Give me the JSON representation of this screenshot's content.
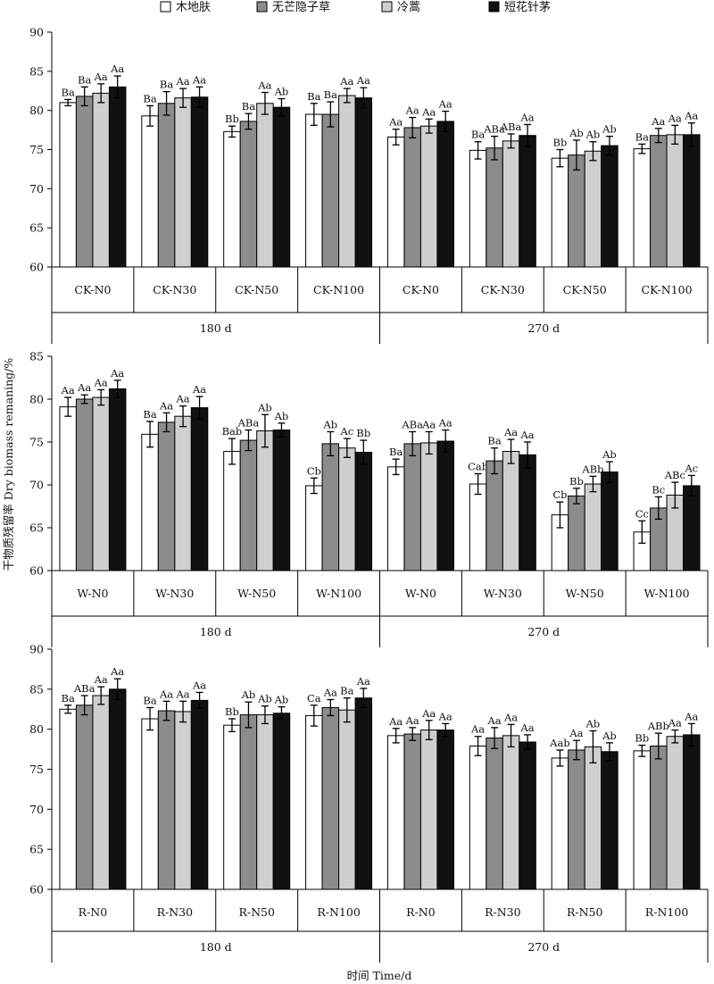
{
  "legend": [
    {
      "name": "木地肤",
      "color": "#ffffff"
    },
    {
      "name": "无芒隐子草",
      "color": "#8c8c8c"
    },
    {
      "name": "冷蒿",
      "color": "#cfcfcf"
    },
    {
      "name": "短花针茅",
      "color": "#111111"
    }
  ],
  "ylabel": "干物质残留率 Dry biomass remaning/%",
  "xlabel": "时间  Time/d",
  "chart_data": [
    {
      "type": "bar",
      "panel": "CK",
      "ylim": [
        60,
        90
      ],
      "yticks": [
        60,
        65,
        70,
        75,
        80,
        85,
        90
      ],
      "categories": [
        "CK-N0",
        "CK-N30",
        "CK-N50",
        "CK-N100",
        "CK-N0",
        "CK-N30",
        "CK-N50",
        "CK-N100"
      ],
      "groups": [
        {
          "label": "180 d",
          "span": [
            0,
            3
          ]
        },
        {
          "label": "270 d",
          "span": [
            4,
            7
          ]
        }
      ],
      "series": [
        {
          "name": "木地肤",
          "values": [
            81.0,
            79.3,
            77.3,
            79.5,
            76.6,
            74.9,
            73.9,
            75.1
          ],
          "errors": [
            0.4,
            1.3,
            0.7,
            1.4,
            1.0,
            1.1,
            1.1,
            0.6
          ],
          "labels": [
            "Ba",
            "Ba",
            "Bb",
            "Ba",
            "Aa",
            "Ba",
            "Bb",
            "Ba"
          ]
        },
        {
          "name": "无芒隐子草",
          "values": [
            81.8,
            80.9,
            78.6,
            79.5,
            77.8,
            75.2,
            74.3,
            76.8
          ],
          "errors": [
            1.2,
            1.5,
            1.0,
            1.6,
            1.3,
            1.5,
            1.9,
            0.9
          ],
          "labels": [
            "Ba",
            "Ba",
            "Ba",
            "Ba",
            "Aa",
            "ABa",
            "Ab",
            "Aa"
          ]
        },
        {
          "name": "冷蒿",
          "values": [
            82.2,
            81.6,
            80.9,
            81.9,
            78.0,
            76.1,
            74.8,
            76.9
          ],
          "errors": [
            1.2,
            1.2,
            1.4,
            0.9,
            0.9,
            0.9,
            1.2,
            1.2
          ],
          "labels": [
            "Aa",
            "Aa",
            "Aa",
            "Aa",
            "Aa",
            "ABa",
            "Ab",
            "Aa"
          ]
        },
        {
          "name": "短花针茅",
          "values": [
            83.0,
            81.7,
            80.4,
            81.6,
            78.6,
            76.8,
            75.5,
            76.9
          ],
          "errors": [
            1.4,
            1.3,
            1.1,
            1.3,
            1.3,
            1.4,
            1.2,
            1.5
          ],
          "labels": [
            "Aa",
            "Aa",
            "Ab",
            "Aa",
            "Aa",
            "Aa",
            "Ab",
            "Aa"
          ]
        }
      ]
    },
    {
      "type": "bar",
      "panel": "W",
      "ylim": [
        60,
        85
      ],
      "yticks": [
        60,
        65,
        70,
        75,
        80,
        85
      ],
      "categories": [
        "W-N0",
        "W-N30",
        "W-N50",
        "W-N100",
        "W-N0",
        "W-N30",
        "W-N50",
        "W-N100"
      ],
      "groups": [
        {
          "label": "180 d",
          "span": [
            0,
            3
          ]
        },
        {
          "label": "270 d",
          "span": [
            4,
            7
          ]
        }
      ],
      "series": [
        {
          "name": "木地肤",
          "values": [
            79.1,
            75.9,
            73.9,
            69.9,
            72.1,
            70.1,
            66.5,
            64.5
          ],
          "errors": [
            1.1,
            1.5,
            1.5,
            0.9,
            0.9,
            1.2,
            1.5,
            1.3
          ],
          "labels": [
            "Aa",
            "Ba",
            "Bab",
            "Cb",
            "Ba",
            "Cab",
            "Cb",
            "Cc"
          ]
        },
        {
          "name": "无芒隐子草",
          "values": [
            80.0,
            77.3,
            75.2,
            74.8,
            74.8,
            72.8,
            68.7,
            67.3
          ],
          "errors": [
            0.5,
            1.1,
            1.2,
            1.4,
            1.4,
            1.5,
            0.9,
            1.3
          ],
          "labels": [
            "Aa",
            "Aa",
            "ABa",
            "Ab",
            "ABa",
            "Ba",
            "Bb",
            "Bc"
          ]
        },
        {
          "name": "冷蒿",
          "values": [
            80.2,
            78.0,
            76.3,
            74.3,
            74.9,
            73.9,
            70.1,
            68.8
          ],
          "errors": [
            0.9,
            1.2,
            1.9,
            1.1,
            1.3,
            1.4,
            0.9,
            1.5
          ],
          "labels": [
            "Aa",
            "Aa",
            "Ab",
            "Ac",
            "Aa",
            "Aa",
            "ABb",
            "ABc"
          ]
        },
        {
          "name": "短花针茅",
          "values": [
            81.2,
            79.0,
            76.4,
            73.8,
            75.1,
            73.5,
            71.5,
            69.9
          ],
          "errors": [
            1.0,
            1.3,
            0.8,
            1.4,
            1.3,
            1.5,
            1.2,
            1.2
          ],
          "labels": [
            "Aa",
            "Aa",
            "Ab",
            "Bb",
            "Aa",
            "Aa",
            "Ab",
            "Ac"
          ]
        }
      ]
    },
    {
      "type": "bar",
      "panel": "R",
      "ylim": [
        60,
        90
      ],
      "yticks": [
        60,
        65,
        70,
        75,
        80,
        85,
        90
      ],
      "categories": [
        "R-N0",
        "R-N30",
        "R-N50",
        "R-N100",
        "R-N0",
        "R-N30",
        "R-N50",
        "R-N100"
      ],
      "groups": [
        {
          "label": "180 d",
          "span": [
            0,
            3
          ]
        },
        {
          "label": "270 d",
          "span": [
            4,
            7
          ]
        }
      ],
      "series": [
        {
          "name": "木地肤",
          "values": [
            82.5,
            81.3,
            80.5,
            81.7,
            79.2,
            77.9,
            76.4,
            77.3
          ],
          "errors": [
            0.5,
            1.4,
            0.8,
            1.3,
            0.9,
            1.2,
            1.0,
            0.7
          ],
          "labels": [
            "Ba",
            "Ba",
            "Bb",
            "Ca",
            "Aa",
            "Aa",
            "Aab",
            "Bb"
          ]
        },
        {
          "name": "无芒隐子草",
          "values": [
            83.0,
            82.3,
            81.8,
            82.7,
            79.4,
            78.9,
            77.4,
            77.9
          ],
          "errors": [
            1.2,
            1.2,
            1.6,
            1.0,
            0.8,
            1.3,
            1.2,
            1.6
          ],
          "labels": [
            "ABa",
            "Aa",
            "Ab",
            "Aa",
            "Aa",
            "Aa",
            "Aa",
            "ABb"
          ]
        },
        {
          "name": "冷蒿",
          "values": [
            84.2,
            82.2,
            81.8,
            82.4,
            79.9,
            79.2,
            77.8,
            79.1
          ],
          "errors": [
            1.1,
            1.3,
            1.1,
            1.5,
            1.2,
            1.4,
            2.0,
            0.8
          ],
          "labels": [
            "Aa",
            "Aa",
            "Ab",
            "Ba",
            "Aa",
            "Aa",
            "Ab",
            "Aa"
          ]
        },
        {
          "name": "短花针茅",
          "values": [
            85.0,
            83.6,
            82.0,
            83.9,
            79.9,
            78.4,
            77.2,
            79.3
          ],
          "errors": [
            1.3,
            1.0,
            0.8,
            1.2,
            0.8,
            0.9,
            1.1,
            1.4
          ],
          "labels": [
            "Aa",
            "Aa",
            "Ab",
            "Aa",
            "Aa",
            "Aa",
            "Ab",
            "Aa"
          ]
        }
      ]
    }
  ]
}
